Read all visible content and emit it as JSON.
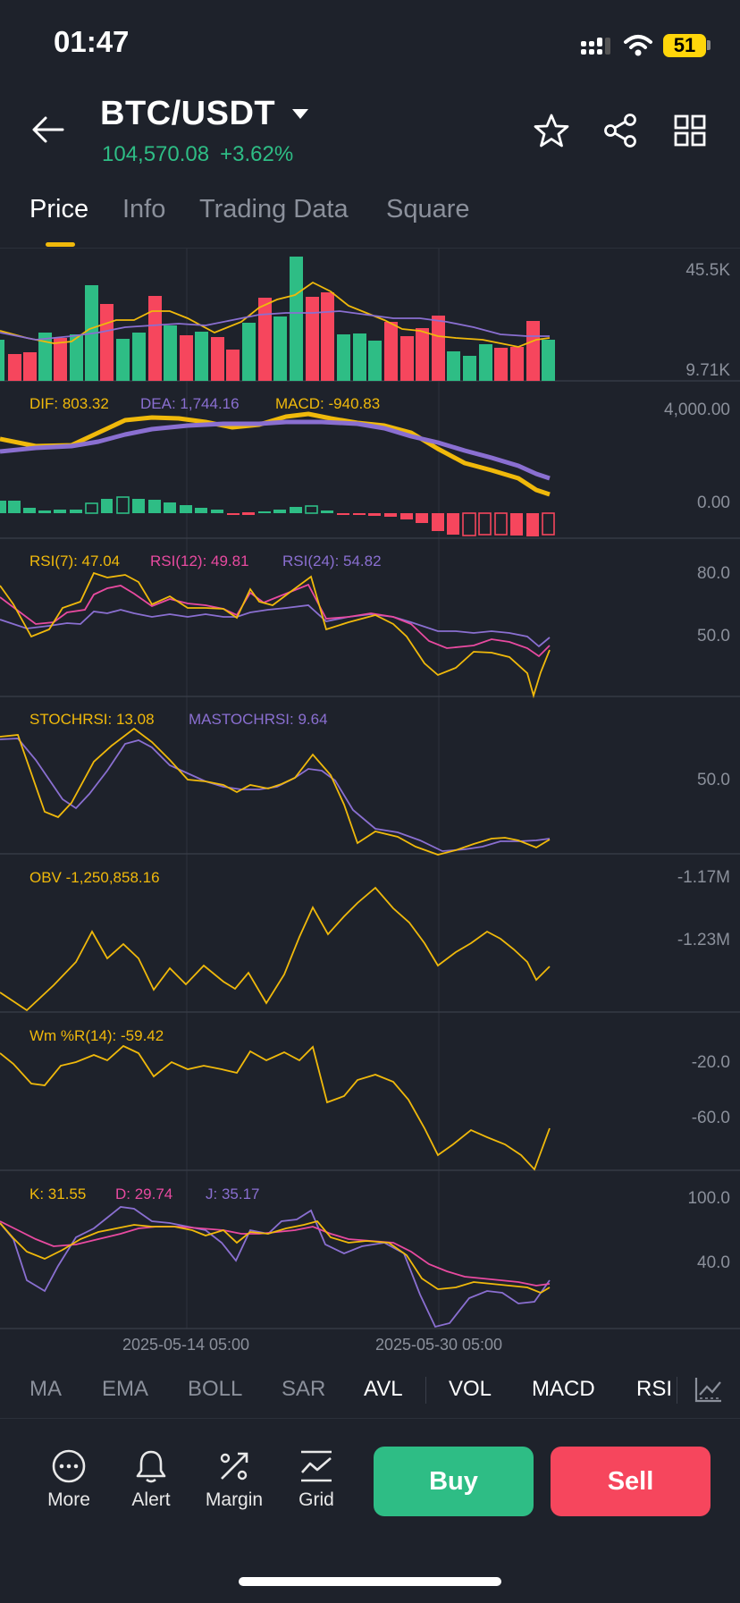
{
  "status_bar": {
    "time": "01:47",
    "battery": "51"
  },
  "header": {
    "pair": "BTC/USDT",
    "last_price": "104,570.08",
    "change": "+3.62%",
    "colors": {
      "up": "#2ebd85",
      "down": "#f6465d",
      "accent": "#f0b90b"
    }
  },
  "tabs": [
    "Price",
    "Info",
    "Trading Data",
    "Square"
  ],
  "active_tab": "Price",
  "panels": {
    "volume": {
      "axis_top": "45.5K",
      "axis_bottom": "9.71K"
    },
    "macd": {
      "dif": "DIF: 803.32",
      "dea": "DEA: 1,744.16",
      "macd": "MACD: -940.83",
      "axis_top": "4,000.00",
      "axis_zero": "0.00"
    },
    "rsi": {
      "rsi7": "RSI(7): 47.04",
      "rsi12": "RSI(12): 49.81",
      "rsi24": "RSI(24): 54.82",
      "axis_80": "80.0",
      "axis_50": "50.0"
    },
    "stochrsi": {
      "stoch": "STOCHRSI: 13.08",
      "ma": "MASTOCHRSI: 9.64",
      "axis_50": "50.0"
    },
    "obv": {
      "label": "OBV -1,250,858.16",
      "axis_top": "-1.17M",
      "axis_mid": "-1.23M"
    },
    "wr": {
      "label": "Wm %R(14): -59.42",
      "axis_a": "-20.0",
      "axis_b": "-60.0"
    },
    "kdj": {
      "k": "K: 31.55",
      "d": "D: 29.74",
      "j": "J: 35.17",
      "axis_100": "100.0",
      "axis_40": "40.0"
    }
  },
  "x_axis": {
    "date_a": "2025-05-14 05:00",
    "date_b": "2025-05-30 05:00"
  },
  "indicator_selector": [
    "MA",
    "EMA",
    "BOLL",
    "SAR",
    "AVL",
    "VOL",
    "MACD",
    "RSI"
  ],
  "indicator_active": [
    "AVL",
    "VOL",
    "MACD",
    "RSI"
  ],
  "actions": {
    "more": "More",
    "alert": "Alert",
    "margin": "Margin",
    "grid": "Grid",
    "buy": "Buy",
    "sell": "Sell"
  }
}
